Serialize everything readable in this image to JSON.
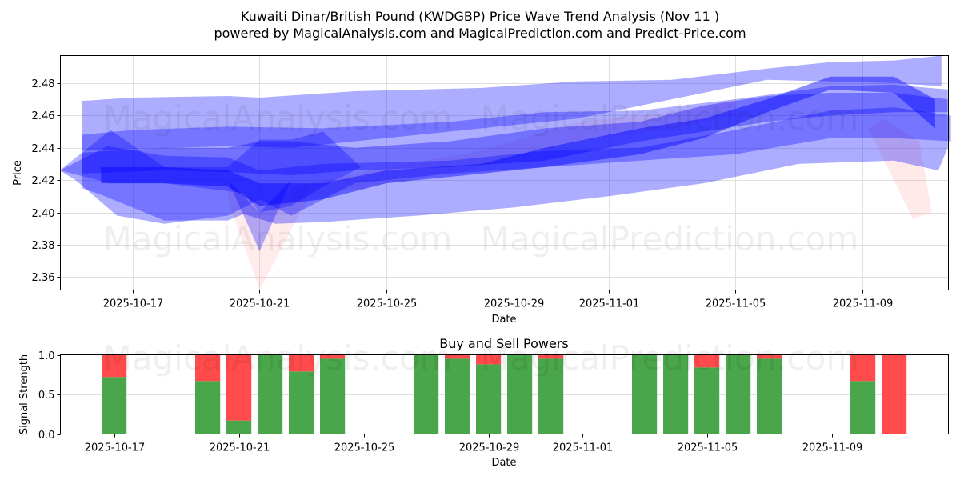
{
  "header": {
    "title_line1": "Kuwaiti Dinar/British Pound (KWDGBP) Price Wave Trend Analysis (Nov 11 )",
    "title_line2": "powered by MagicalAnalysis.com and MagicalPrediction.com and Predict-Price.com"
  },
  "watermarks": {
    "a": "MagicalAnalysis.com",
    "b": "MagicalPrediction.com"
  },
  "colors": {
    "band": "#0000ff",
    "red_band": "#ff9999",
    "buy": "#4aa64a",
    "sell": "#ff4b4b",
    "grid": "#e0e0e0"
  },
  "chart_data": [
    {
      "type": "area",
      "title": "Kuwaiti Dinar/British Pound (KWDGBP) Price Wave Trend Analysis (Nov 11 )",
      "xlabel": "Date",
      "ylabel": "Price",
      "ylim": [
        2.352,
        2.497
      ],
      "yticks": [
        2.36,
        2.38,
        2.4,
        2.42,
        2.44,
        2.46,
        2.48
      ],
      "ytick_labels": [
        "2.36",
        "2.38",
        "2.40",
        "2.42",
        "2.44",
        "2.46",
        "2.48"
      ],
      "xticks": [
        "2025-10-17",
        "2025-10-21",
        "2025-10-25",
        "2025-10-29",
        "2025-11-01",
        "2025-11-05",
        "2025-11-09"
      ],
      "xtick_days": [
        2,
        6,
        10,
        14,
        17,
        21,
        25
      ],
      "xlim_days": [
        -0.28,
        27.72
      ],
      "grid": true,
      "day0": "2025-10-15",
      "bands": [
        {
          "name": "wide-outer",
          "opacity": 0.32,
          "upper": [
            [
              0.4,
              2.469
            ],
            [
              2,
              2.471
            ],
            [
              5,
              2.472
            ],
            [
              6,
              2.471
            ],
            [
              9,
              2.475
            ],
            [
              13,
              2.477
            ],
            [
              16,
              2.481
            ],
            [
              19,
              2.482
            ],
            [
              22,
              2.489
            ],
            [
              24,
              2.493
            ],
            [
              26,
              2.494
            ],
            [
              27.5,
              2.497
            ]
          ],
          "lower": [
            [
              27.5,
              2.478
            ],
            [
              26,
              2.48
            ],
            [
              22,
              2.482
            ],
            [
              19,
              2.47
            ],
            [
              16,
              2.458
            ],
            [
              13,
              2.452
            ],
            [
              10,
              2.446
            ],
            [
              7,
              2.44
            ],
            [
              5,
              2.441
            ],
            [
              0.4,
              2.438
            ]
          ]
        },
        {
          "name": "wide-lower",
          "opacity": 0.32,
          "upper": [
            [
              0.4,
              2.448
            ],
            [
              2,
              2.451
            ],
            [
              5,
              2.453
            ],
            [
              8,
              2.452
            ],
            [
              12,
              2.456
            ],
            [
              15,
              2.462
            ],
            [
              18,
              2.463
            ],
            [
              21,
              2.47
            ],
            [
              24,
              2.478
            ],
            [
              26,
              2.479
            ],
            [
              27.7,
              2.476
            ]
          ],
          "lower": [
            [
              27.7,
              2.44
            ],
            [
              27.4,
              2.426
            ],
            [
              26,
              2.432
            ],
            [
              23,
              2.43
            ],
            [
              20,
              2.418
            ],
            [
              17,
              2.41
            ],
            [
              14,
              2.403
            ],
            [
              11,
              2.398
            ],
            [
              8,
              2.394
            ],
            [
              6.5,
              2.393
            ],
            [
              5.5,
              2.399
            ],
            [
              5,
              2.395
            ],
            [
              3,
              2.395
            ],
            [
              1,
              2.411
            ],
            [
              0.4,
              2.415
            ]
          ]
        },
        {
          "name": "low-envelope",
          "opacity": 0.32,
          "upper": [
            [
              -0.3,
              2.426
            ],
            [
              1.2,
              2.441
            ],
            [
              3,
              2.435
            ],
            [
              5,
              2.434
            ],
            [
              6,
              2.426
            ],
            [
              8,
              2.43
            ],
            [
              12,
              2.432
            ],
            [
              15,
              2.438
            ],
            [
              18,
              2.44
            ],
            [
              21,
              2.451
            ],
            [
              24,
              2.463
            ],
            [
              26,
              2.465
            ],
            [
              27.8,
              2.46
            ]
          ],
          "lower": [
            [
              27.8,
              2.444
            ],
            [
              26,
              2.446
            ],
            [
              24,
              2.446
            ],
            [
              21,
              2.436
            ],
            [
              18,
              2.432
            ],
            [
              15,
              2.428
            ],
            [
              12,
              2.424
            ],
            [
              9,
              2.418
            ],
            [
              7,
              2.398
            ],
            [
              6,
              2.408
            ],
            [
              5,
              2.398
            ],
            [
              3,
              2.393
            ],
            [
              1.5,
              2.398
            ],
            [
              0.2,
              2.42
            ]
          ]
        },
        {
          "name": "mid-band",
          "opacity": 0.34,
          "upper": [
            [
              0.4,
              2.437
            ],
            [
              3,
              2.44
            ],
            [
              5,
              2.44
            ],
            [
              6,
              2.444
            ],
            [
              7,
              2.444
            ],
            [
              9,
              2.44
            ],
            [
              12,
              2.444
            ],
            [
              15,
              2.452
            ],
            [
              18,
              2.456
            ],
            [
              20,
              2.466
            ],
            [
              22,
              2.472
            ],
            [
              24,
              2.474
            ],
            [
              26,
              2.474
            ],
            [
              27.7,
              2.47
            ]
          ],
          "lower": [
            [
              27.7,
              2.462
            ],
            [
              26,
              2.462
            ],
            [
              24,
              2.46
            ],
            [
              22,
              2.456
            ],
            [
              20,
              2.45
            ],
            [
              18,
              2.444
            ],
            [
              15,
              2.432
            ],
            [
              12,
              2.428
            ],
            [
              9,
              2.426
            ],
            [
              7,
              2.423
            ],
            [
              5,
              2.425
            ],
            [
              3,
              2.426
            ],
            [
              0.4,
              2.424
            ]
          ]
        },
        {
          "name": "core",
          "opacity": 0.45,
          "upper": [
            [
              1,
              2.428
            ],
            [
              3,
              2.428
            ],
            [
              5,
              2.426
            ],
            [
              6,
              2.418
            ],
            [
              8,
              2.418
            ],
            [
              10,
              2.426
            ],
            [
              13,
              2.43
            ],
            [
              15,
              2.44
            ],
            [
              18,
              2.452
            ],
            [
              20,
              2.458
            ],
            [
              22,
              2.47
            ],
            [
              24,
              2.484
            ],
            [
              26,
              2.484
            ],
            [
              27.3,
              2.47
            ]
          ],
          "lower": [
            [
              27.3,
              2.452
            ],
            [
              26,
              2.474
            ],
            [
              24,
              2.476
            ],
            [
              22,
              2.462
            ],
            [
              20,
              2.446
            ],
            [
              18,
              2.436
            ],
            [
              15,
              2.428
            ],
            [
              13,
              2.424
            ],
            [
              10,
              2.418
            ],
            [
              8,
              2.408
            ],
            [
              6,
              2.404
            ],
            [
              5,
              2.416
            ],
            [
              3,
              2.418
            ],
            [
              1,
              2.418
            ]
          ]
        },
        {
          "name": "diamond",
          "opacity": 0.3,
          "upper": [
            [
              -0.3,
              2.426
            ],
            [
              1.3,
              2.451
            ],
            [
              3,
              2.428
            ],
            [
              5,
              2.428
            ],
            [
              6,
              2.445
            ],
            [
              7,
              2.445
            ],
            [
              8,
              2.45
            ],
            [
              9.2,
              2.428
            ]
          ],
          "lower": [
            [
              9.2,
              2.428
            ],
            [
              8,
              2.416
            ],
            [
              7,
              2.404
            ],
            [
              6,
              2.4
            ],
            [
              5.5,
              2.412
            ],
            [
              3,
              2.418
            ],
            [
              1.3,
              2.418
            ]
          ]
        },
        {
          "name": "dip",
          "opacity": 0.3,
          "upper": [
            [
              5,
              2.42
            ],
            [
              6,
              2.4
            ],
            [
              7,
              2.42
            ]
          ],
          "lower": [
            [
              7,
              2.42
            ],
            [
              6,
              2.376
            ],
            [
              5,
              2.42
            ]
          ]
        }
      ],
      "red_bands": [
        {
          "name": "red-dip",
          "opacity": 0.2,
          "upper": [
            [
              5,
              2.418
            ],
            [
              6.2,
              2.405
            ],
            [
              7.5,
              2.418
            ]
          ],
          "lower": [
            [
              7.5,
              2.408
            ],
            [
              6,
              2.352
            ],
            [
              5,
              2.408
            ]
          ]
        },
        {
          "name": "red-rise",
          "opacity": 0.18,
          "upper": [
            [
              7,
              2.416
            ],
            [
              10,
              2.428
            ],
            [
              13,
              2.438
            ],
            [
              16,
              2.456
            ],
            [
              19,
              2.462
            ],
            [
              21,
              2.47
            ]
          ],
          "lower": [
            [
              21,
              2.46
            ],
            [
              19,
              2.452
            ],
            [
              16,
              2.444
            ],
            [
              13,
              2.428
            ],
            [
              10,
              2.418
            ],
            [
              7,
              2.408
            ]
          ]
        },
        {
          "name": "red-tail",
          "opacity": 0.22,
          "upper": [
            [
              25.7,
              2.458
            ],
            [
              26.8,
              2.444
            ],
            [
              27.2,
              2.4
            ]
          ],
          "lower": [
            [
              26.6,
              2.396
            ],
            [
              25.5,
              2.44
            ],
            [
              25.2,
              2.452
            ]
          ]
        }
      ]
    },
    {
      "type": "bar",
      "title": "Buy and Sell Powers",
      "xlabel": "Date",
      "ylabel": "Signal Strength",
      "ylim": [
        0.0,
        1.0
      ],
      "yticks": [
        0.0,
        0.5,
        1.0
      ],
      "ytick_labels": [
        "0.0",
        "0.5",
        "1.0"
      ],
      "xticks": [
        "2025-10-17",
        "2025-10-21",
        "2025-10-25",
        "2025-10-29",
        "2025-11-01",
        "2025-11-05",
        "2025-11-09"
      ],
      "xtick_days": [
        2,
        6,
        10,
        14,
        17,
        21,
        25
      ],
      "xlim_days": [
        0.28,
        28.74
      ],
      "categories": [
        "2025-10-17",
        "2025-10-20",
        "2025-10-21",
        "2025-10-22",
        "2025-10-23",
        "2025-10-24",
        "2025-10-27",
        "2025-10-28",
        "2025-10-29",
        "2025-10-30",
        "2025-10-31",
        "2025-11-03",
        "2025-11-04",
        "2025-11-05",
        "2025-11-06",
        "2025-11-07",
        "2025-11-10",
        "2025-11-11"
      ],
      "day_index": [
        2,
        5,
        6,
        7,
        8,
        9,
        12,
        13,
        14,
        15,
        16,
        19,
        20,
        21,
        22,
        23,
        26,
        27
      ],
      "series": [
        {
          "name": "Buy",
          "color": "#4aa64a",
          "values": [
            0.72,
            0.67,
            0.17,
            1.0,
            0.79,
            0.95,
            1.0,
            0.95,
            0.88,
            1.0,
            0.95,
            1.0,
            1.0,
            0.84,
            1.0,
            0.95,
            0.67,
            0.0
          ]
        },
        {
          "name": "Sell",
          "color": "#ff4b4b",
          "values": [
            0.28,
            0.33,
            0.83,
            0.0,
            0.21,
            0.05,
            0.0,
            0.05,
            0.12,
            0.0,
            0.05,
            0.0,
            0.0,
            0.16,
            0.0,
            0.05,
            0.33,
            1.0
          ]
        }
      ],
      "grid": true
    }
  ]
}
